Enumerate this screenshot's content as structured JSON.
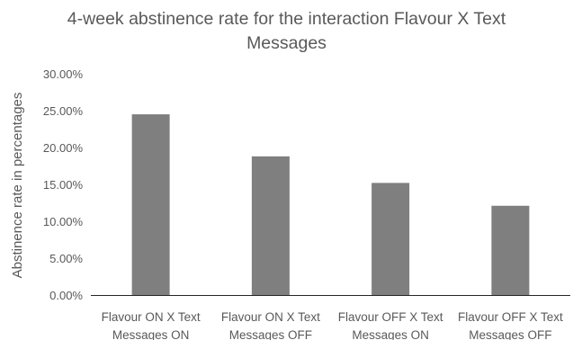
{
  "chart_data": {
    "type": "bar",
    "title": "4-week abstinence rate for the interaction Flavour X Text\nMessages",
    "xlabel": "",
    "ylabel": "Abstinence rate in percentages",
    "categories": [
      [
        "Flavour ON X Text",
        "Messages ON"
      ],
      [
        "Flavour ON X Text",
        "Messages OFF"
      ],
      [
        "Flavour OFF X Text",
        "Messages ON"
      ],
      [
        "Flavour OFF X Text",
        "Messages OFF"
      ]
    ],
    "values": [
      24.5,
      18.8,
      15.2,
      12.1
    ],
    "ylim": [
      0,
      30
    ],
    "yticks": [
      "0.00%",
      "5.00%",
      "10.00%",
      "15.00%",
      "20.00%",
      "25.00%",
      "30.00%"
    ],
    "grid": false,
    "legend": "none",
    "bar_color": "#7f7f80",
    "axis_color": "#262626"
  }
}
